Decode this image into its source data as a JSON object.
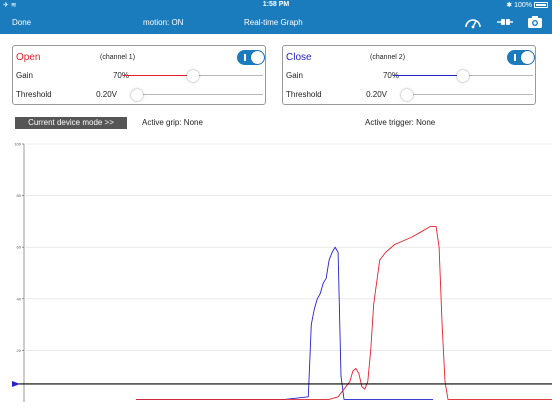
{
  "status_bar": {
    "time": "1:58 PM",
    "battery": "100%"
  },
  "nav": {
    "done_label": "Done",
    "motion_label": "motion: ON",
    "title": "Real-time Graph"
  },
  "icons": [
    "speedometer-icon",
    "connect-plug-icon",
    "camera-icon"
  ],
  "colors": {
    "brand": "#1a7bbd",
    "open": "#e4202b",
    "close": "#2323cc",
    "baseline": "#000000"
  },
  "channels": [
    {
      "name": "Open",
      "channel_label": "(channel 1)",
      "toggle": "I",
      "gain_label": "Gain",
      "gain_value": "70%",
      "gain_fraction": 0.5,
      "threshold_label": "Threshold",
      "threshold_value": "0.20V",
      "threshold_fraction": 0.02
    },
    {
      "name": "Close",
      "channel_label": "(channel 2)",
      "toggle": "I",
      "gain_label": "Gain",
      "gain_value": "70%",
      "gain_fraction": 0.5,
      "threshold_label": "Threshold",
      "threshold_value": "0.20V",
      "threshold_fraction": 0.02
    }
  ],
  "mode_button_label": "Current device mode >>",
  "active_grip": "Active grip:  None",
  "active_trigger": "Active trigger:  None",
  "chart_data": {
    "type": "line",
    "title": "",
    "xlabel": "",
    "ylabel": "",
    "ylim": [
      0,
      100
    ],
    "y_ticks": [
      "100",
      "80",
      "60",
      "40",
      "20"
    ],
    "threshold_line": 7,
    "grid": true,
    "series": [
      {
        "color": "#2323cc",
        "points": [
          [
            0,
            1
          ],
          [
            50,
            1
          ],
          [
            58,
            2
          ],
          [
            59,
            30
          ],
          [
            60,
            36
          ],
          [
            61,
            40
          ],
          [
            62,
            42
          ],
          [
            63,
            46
          ],
          [
            64,
            48
          ],
          [
            65,
            55
          ],
          [
            66,
            58
          ],
          [
            67,
            60
          ],
          [
            68,
            58
          ],
          [
            69,
            10
          ],
          [
            70,
            1
          ],
          [
            100,
            1
          ]
        ]
      },
      {
        "color": "#e4202b",
        "points": [
          [
            0,
            1
          ],
          [
            65,
            1
          ],
          [
            68,
            2
          ],
          [
            72,
            8
          ],
          [
            73,
            12
          ],
          [
            74,
            13
          ],
          [
            75,
            11
          ],
          [
            76,
            6
          ],
          [
            77,
            5
          ],
          [
            78,
            8
          ],
          [
            79,
            20
          ],
          [
            80,
            38
          ],
          [
            82,
            55
          ],
          [
            84,
            58
          ],
          [
            87,
            61
          ],
          [
            89,
            62
          ],
          [
            91,
            63
          ],
          [
            93,
            64
          ],
          [
            96,
            66
          ],
          [
            99,
            68
          ],
          [
            101,
            68
          ],
          [
            102,
            60
          ],
          [
            103,
            30
          ],
          [
            104,
            8
          ],
          [
            105,
            1
          ],
          [
            140,
            1
          ]
        ]
      }
    ]
  }
}
